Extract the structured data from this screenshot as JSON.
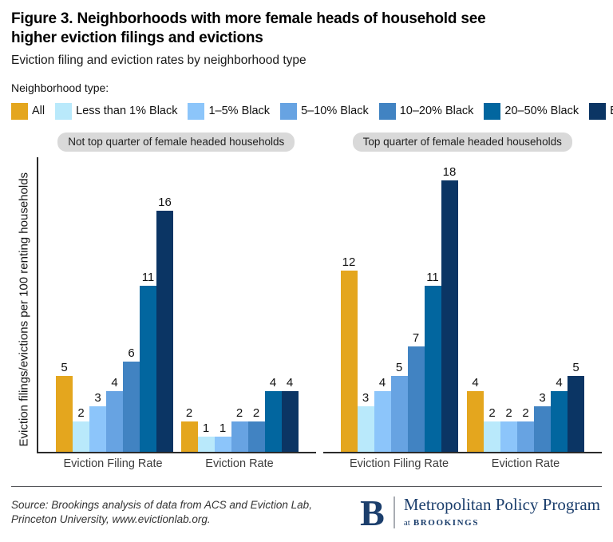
{
  "header": {
    "title": "Figure 3. Neighborhoods with more female heads of household see higher eviction filings and evictions",
    "subtitle": "Eviction filing and eviction rates by neighborhood type"
  },
  "chart_data": {
    "type": "bar",
    "title": "Eviction filing and eviction rates by neighborhood type",
    "ylabel": "Eviction filings/evictions per 100 renting households",
    "xlabel": "",
    "ylim": [
      0,
      19
    ],
    "grid": false,
    "legend": {
      "title": "Neighborhood type:",
      "position": "top",
      "items": [
        {
          "label": "All",
          "color": "#E4A61E"
        },
        {
          "label": "Less than 1% Black",
          "color": "#B9E9FB"
        },
        {
          "label": "1–5% Black",
          "color": "#8CC5FA"
        },
        {
          "label": "5–10% Black",
          "color": "#67A3E2"
        },
        {
          "label": "10–20% Black",
          "color": "#4183C2"
        },
        {
          "label": "20–50% Black",
          "color": "#02669F"
        },
        {
          "label": "Black Majority",
          "color": "#0B3564"
        }
      ]
    },
    "panels": [
      {
        "label": "Not top quarter of female headed households",
        "groups": [
          {
            "label": "Eviction Filing Rate",
            "values": [
              5,
              2,
              3,
              4,
              6,
              11,
              16
            ]
          },
          {
            "label": "Eviction Rate",
            "values": [
              2,
              1,
              1,
              2,
              2,
              4,
              4
            ]
          }
        ]
      },
      {
        "label": "Top quarter of female headed households",
        "groups": [
          {
            "label": "Eviction Filing Rate",
            "values": [
              12,
              3,
              4,
              5,
              7,
              11,
              18
            ]
          },
          {
            "label": "Eviction Rate",
            "values": [
              4,
              2,
              2,
              2,
              3,
              4,
              5
            ]
          }
        ]
      }
    ]
  },
  "footer": {
    "source_line1": "Source: Brookings analysis of data from ACS and Eviction Lab,",
    "source_line2": "Princeton University, www.evictionlab.org.",
    "logo": {
      "initial": "B",
      "program": "Metropolitan Policy Program",
      "sub_prefix": "at",
      "sub_name": "BROOKINGS"
    }
  }
}
